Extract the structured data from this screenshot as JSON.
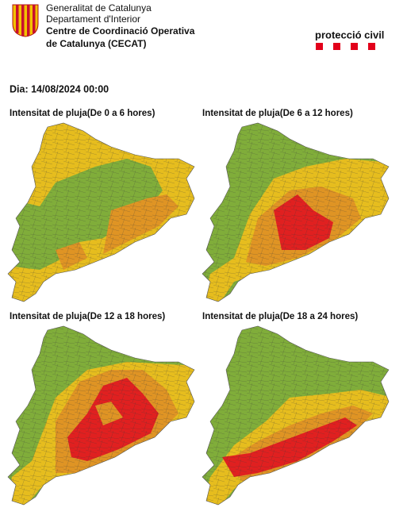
{
  "header": {
    "lines": [
      "Generalitat de Catalunya",
      "Departament d'Interior",
      "Centre de Coordinació Operativa",
      "de Catalunya (CECAT)"
    ],
    "brand": "protecció civil"
  },
  "date": "Dia: 14/08/2024 00:00",
  "maps": [
    {
      "title": "Intensitat de pluja(De 0 a 6 hores)"
    },
    {
      "title": "Intensitat de pluja(De 6 a 12 hores)"
    },
    {
      "title": "Intensitat de pluja(De 12 a 18 hores)"
    },
    {
      "title": "Intensitat de pluja(De 18 a 24 hores)"
    }
  ]
}
